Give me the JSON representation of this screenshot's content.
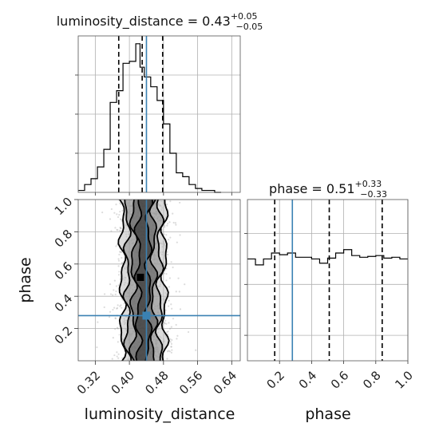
{
  "chart_data": {
    "type": "corner",
    "parameters": [
      "luminosity_distance",
      "phase"
    ],
    "truth": {
      "luminosity_distance": 0.44,
      "phase": 0.28
    },
    "accent_color": "#3a81b3",
    "hist_color": "#000000",
    "marginals": [
      {
        "parameter": "luminosity_distance",
        "title_text": "luminosity_distance = 0.43",
        "sup": "+0.05",
        "sub": "−0.05",
        "quantiles": [
          0.375,
          0.43,
          0.478
        ],
        "xlim": [
          0.28,
          0.66
        ],
        "xticks": [
          0.32,
          0.4,
          0.48,
          0.56,
          0.64
        ],
        "edges": [
          0.28,
          0.295,
          0.31,
          0.325,
          0.34,
          0.355,
          0.37,
          0.385,
          0.4,
          0.415,
          0.425,
          0.435,
          0.45,
          0.465,
          0.48,
          0.495,
          0.51,
          0.525,
          0.54,
          0.555,
          0.57,
          0.585,
          0.6,
          0.615
        ],
        "counts": [
          0.5,
          2,
          3.5,
          6.5,
          11,
          23,
          26,
          33,
          33.5,
          38,
          32,
          29.5,
          27,
          23.5,
          17.5,
          10,
          5,
          4,
          2,
          1,
          0.5,
          0.5,
          0
        ],
        "ymax": 40
      },
      {
        "parameter": "phase",
        "title_text": "phase = 0.51",
        "sup": "+0.33",
        "sub": "−0.33",
        "quantiles": [
          0.17,
          0.51,
          0.84
        ],
        "xlim": [
          0.0,
          1.0
        ],
        "xticks": [
          0.2,
          0.4,
          0.6,
          0.8,
          1.0
        ],
        "edges": [
          0.0,
          0.05,
          0.1,
          0.15,
          0.2,
          0.25,
          0.3,
          0.35,
          0.4,
          0.45,
          0.5,
          0.55,
          0.6,
          0.65,
          0.7,
          0.75,
          0.8,
          0.85,
          0.9,
          0.95,
          1.0
        ],
        "counts": [
          120,
          113,
          120,
          127,
          125,
          127,
          122,
          122,
          120,
          115,
          121,
          127,
          131,
          124,
          122,
          123,
          124,
          121,
          122,
          120
        ],
        "ymax": 190
      }
    ],
    "joint": {
      "x": "luminosity_distance",
      "y": "phase",
      "xlim": [
        0.28,
        0.66
      ],
      "ylim": [
        0.0,
        1.0
      ],
      "xticks": [
        0.32,
        0.4,
        0.48,
        0.56,
        0.64
      ],
      "yticks": [
        0.2,
        0.4,
        0.6,
        0.8,
        1.0
      ],
      "center": 0.433,
      "sigma": 0.028,
      "contour_halfwidths": [
        0.012,
        0.024,
        0.038,
        0.05
      ],
      "contour_colors": [
        "#2a2a2a",
        "#555555",
        "#8a8a8a",
        "#bdbdbd"
      ]
    },
    "tick_labels": {
      "luminosity_distance": [
        "0.32",
        "0.40",
        "0.48",
        "0.56",
        "0.64"
      ],
      "phase": [
        "0.2",
        "0.4",
        "0.6",
        "0.8",
        "1.0"
      ]
    },
    "axis_labels": {
      "x1": "luminosity_distance",
      "x2": "phase",
      "y2": "phase"
    }
  }
}
